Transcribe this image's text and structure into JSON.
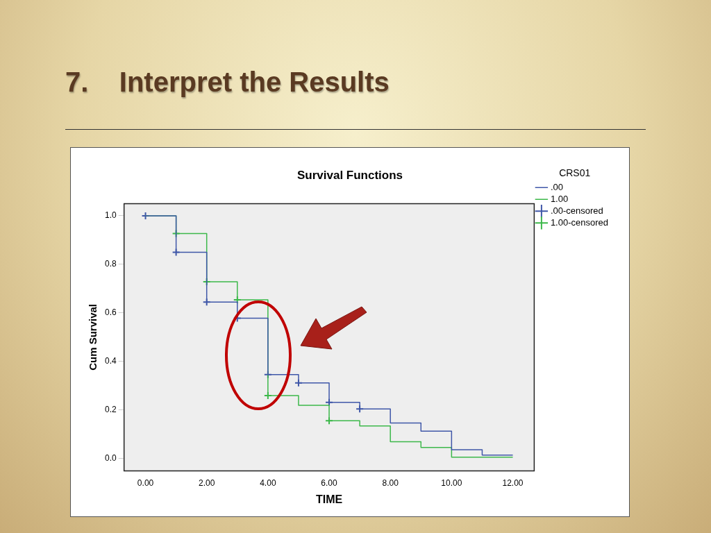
{
  "chart_data": {
    "type": "step",
    "title": "Survival Functions",
    "xlabel": "TIME",
    "ylabel": "Cum Survival",
    "legend_title": "CRS01",
    "annotations": [
      "7.    Interpret the Results"
    ],
    "xlim": [
      -0.7,
      12.7
    ],
    "ylim": [
      -0.05,
      1.05
    ],
    "xticks": [
      {
        "value": 0,
        "label": "0.00"
      },
      {
        "value": 2,
        "label": "2.00"
      },
      {
        "value": 4,
        "label": "4.00"
      },
      {
        "value": 6,
        "label": "6.00"
      },
      {
        "value": 8,
        "label": "8.00"
      },
      {
        "value": 10,
        "label": "10.00"
      },
      {
        "value": 12,
        "label": "12.00"
      }
    ],
    "yticks": [
      {
        "value": 0,
        "label": "0.0"
      },
      {
        "value": 0.2,
        "label": "0.2"
      },
      {
        "value": 0.4,
        "label": "0.4"
      },
      {
        "value": 0.6,
        "label": "0.6"
      },
      {
        "value": 0.8,
        "label": "0.8"
      },
      {
        "value": 1,
        "label": "1.0"
      }
    ],
    "grid": false,
    "legend": "right",
    "line_style": "solid",
    "series": [
      {
        "name": ".00",
        "type": "step",
        "color": "#3f57a8",
        "x": [
          0,
          1,
          2,
          3,
          4,
          5,
          6,
          7,
          8,
          9,
          10,
          11,
          12
        ],
        "values": [
          1.0,
          0.85,
          0.645,
          0.578,
          0.346,
          0.312,
          0.232,
          0.205,
          0.147,
          0.113,
          0.037,
          0.015,
          0.015
        ]
      },
      {
        "name": "1.00",
        "type": "step",
        "color": "#3cb84a",
        "x": [
          0,
          1,
          2,
          3,
          4,
          5,
          6,
          7,
          8,
          9,
          10,
          11,
          12
        ],
        "values": [
          1.0,
          0.927,
          0.728,
          0.654,
          0.26,
          0.22,
          0.156,
          0.135,
          0.07,
          0.046,
          0.006,
          0.006,
          0.006
        ]
      },
      {
        "name": ".00-censored",
        "type": "scatter",
        "marker": "cross",
        "color": "#3f57a8",
        "x": [
          0,
          1,
          2,
          3,
          4,
          5,
          6,
          7
        ],
        "values": [
          1.0,
          0.85,
          0.645,
          0.578,
          0.346,
          0.312,
          0.232,
          0.205
        ]
      },
      {
        "name": "1.00-censored",
        "type": "scatter",
        "marker": "cross",
        "color": "#3cb84a",
        "x": [
          1,
          2,
          3,
          4,
          6
        ],
        "values": [
          0.927,
          0.728,
          0.654,
          0.26,
          0.156
        ]
      }
    ]
  }
}
